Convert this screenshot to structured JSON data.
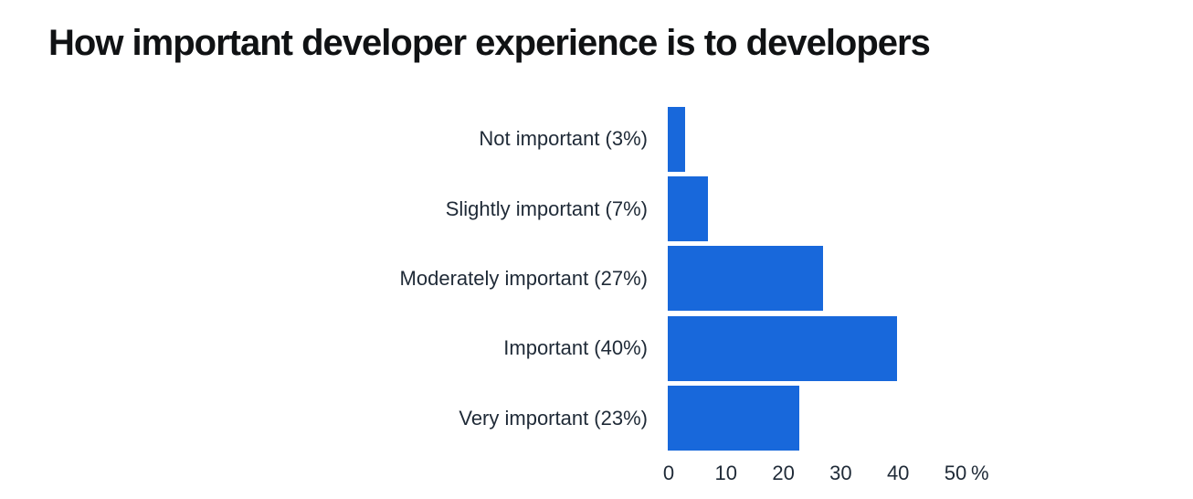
{
  "page": {
    "background": "#ffffff"
  },
  "header": {
    "title": "How important developer experience is to developers"
  },
  "chart_data": {
    "type": "bar",
    "orientation": "horizontal",
    "title": "How important developer experience is to developers",
    "categories": [
      "Not important (3%)",
      "Slightly important (7%)",
      "Moderately important (27%)",
      "Important (40%)",
      "Very important (23%)"
    ],
    "values": [
      3,
      7,
      27,
      40,
      23
    ],
    "xlabel": "",
    "ylabel": "",
    "xlim": [
      0,
      50
    ],
    "x_ticks": [
      0,
      10,
      20,
      30,
      40,
      50
    ],
    "x_tick_labels": [
      "0",
      "10",
      "20",
      "30",
      "40",
      "50"
    ],
    "x_axis_unit": "%",
    "bar_color": "#1868DB",
    "grid": "off",
    "legend": "none"
  },
  "colors": {
    "bar": "#1868DB",
    "title_text": "#101214",
    "label_text": "#1f2a37",
    "background": "#ffffff"
  }
}
